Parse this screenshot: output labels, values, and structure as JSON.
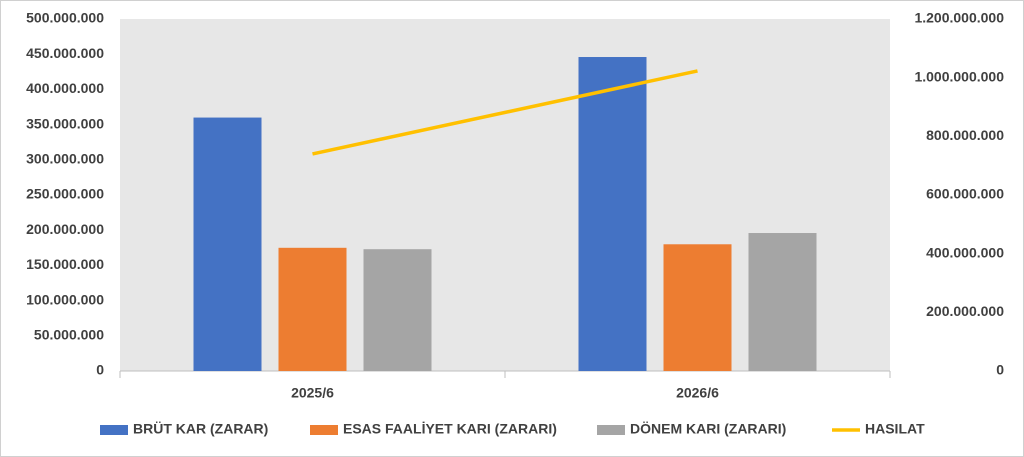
{
  "chart_data": {
    "type": "bar",
    "categories": [
      "2025/6",
      "2026/6"
    ],
    "series": [
      {
        "name": "BRÜT KAR (ZARAR)",
        "color": "#4472c4",
        "values": [
          360000000,
          446000000
        ]
      },
      {
        "name": "ESAS FAALİYET KARI (ZARARI)",
        "color": "#ed7d31",
        "values": [
          175000000,
          180000000
        ]
      },
      {
        "name": "DÖNEM KARI (ZARARI)",
        "color": "#a5a5a5",
        "values": [
          173000000,
          196000000
        ]
      },
      {
        "name": "HASILAT",
        "color": "#ffc000",
        "type": "line",
        "axis": "y2",
        "values": [
          740000000,
          1023000000
        ]
      }
    ],
    "ylim": [
      0,
      500000000
    ],
    "yticks": [
      0,
      {
        "value": 50000000,
        "label": "50.000.000"
      },
      {
        "value": 100000000,
        "label": "100.000.000"
      },
      {
        "value": 150000000,
        "label": "150.000.000"
      },
      {
        "value": 200000000,
        "label": "200.000.000"
      },
      {
        "value": 250000000,
        "label": "250.000.000"
      },
      {
        "value": 300000000,
        "label": "300.000.000"
      },
      {
        "value": 350000000,
        "label": "350.000.000"
      },
      {
        "value": 400000000,
        "label": "400.000.000"
      },
      {
        "value": 450000000,
        "label": "450.000.000"
      },
      {
        "value": 500000000,
        "label": "500.000.000"
      }
    ],
    "y2lim": [
      0,
      1200000000
    ],
    "y2ticks": [
      0,
      {
        "value": 200000000,
        "label": "200.000.000"
      },
      {
        "value": 400000000,
        "label": "400.000.000"
      },
      {
        "value": 600000000,
        "label": "600.000.000"
      },
      {
        "value": 800000000,
        "label": "800.000.000"
      },
      {
        "value": 1000000000,
        "label": "1.000.000.000"
      },
      {
        "value": 1200000000,
        "label": "1.200.000.000"
      }
    ],
    "legend": "bottom"
  }
}
